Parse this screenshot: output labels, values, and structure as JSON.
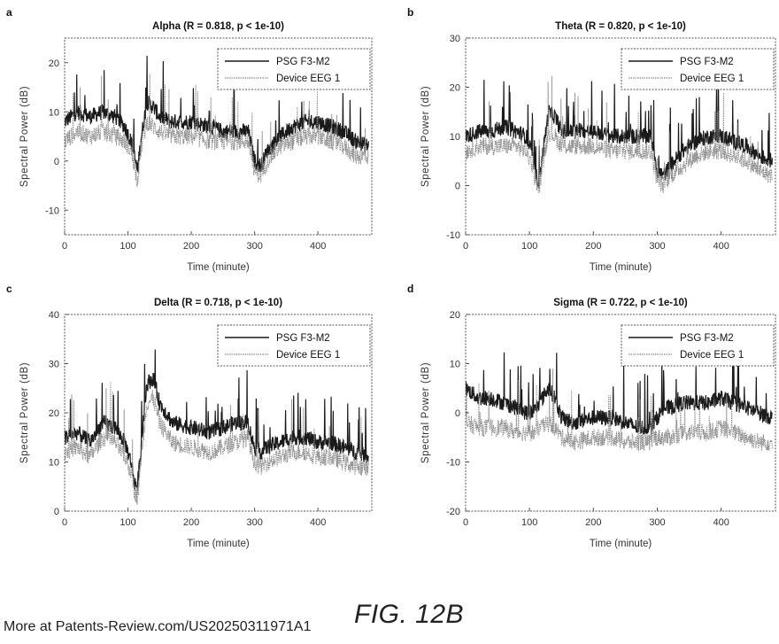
{
  "footer": {
    "source_text": "More at Patents-Review.com/US20250311971A1",
    "figure_label": "FIG. 12B"
  },
  "colors": {
    "psg": "#1a1a1a",
    "device": "#8a8a8a",
    "frame": "#555555"
  },
  "chart_data": [
    {
      "panel": "a",
      "type": "line",
      "title": "Alpha (R = 0.818, p < 1e-10)",
      "xlabel": "Time (minute)",
      "ylabel": "Spectral Power (dB)",
      "xlim": [
        0,
        485
      ],
      "ylim": [
        -15,
        25
      ],
      "xticks": [
        0,
        100,
        200,
        300,
        400
      ],
      "yticks": [
        -10,
        0,
        10,
        20
      ],
      "grid": false,
      "legend_position": "top-right",
      "series": [
        {
          "name": "PSG F3-M2",
          "style": "solid",
          "x": [
            0,
            20,
            40,
            60,
            80,
            95,
            105,
            110,
            115,
            120,
            130,
            140,
            150,
            170,
            200,
            230,
            250,
            270,
            290,
            295,
            300,
            310,
            320,
            340,
            360,
            380,
            400,
            420,
            440,
            460,
            480
          ],
          "y": [
            8,
            10,
            9,
            10,
            9,
            7,
            4,
            1,
            -2,
            4,
            12,
            11,
            9,
            8,
            8,
            7,
            6,
            6,
            6,
            3,
            0,
            -1,
            2,
            5,
            7,
            8,
            8,
            7,
            6,
            4,
            3
          ]
        },
        {
          "name": "Device EEG 1",
          "style": "dotted",
          "x": [
            0,
            20,
            40,
            60,
            80,
            95,
            105,
            110,
            115,
            120,
            130,
            140,
            150,
            170,
            200,
            230,
            250,
            270,
            290,
            295,
            300,
            310,
            320,
            340,
            360,
            380,
            400,
            420,
            440,
            460,
            480
          ],
          "y": [
            4,
            6,
            5,
            6,
            5,
            4,
            2,
            -1,
            -4,
            2,
            8,
            7,
            6,
            5,
            5,
            4,
            4,
            4,
            4,
            1,
            -2,
            -3,
            0,
            3,
            4,
            5,
            5,
            4,
            3,
            1,
            1
          ]
        }
      ]
    },
    {
      "panel": "b",
      "type": "line",
      "title": "Theta (R = 0.820, p < 1e-10)",
      "xlabel": "Time (minute)",
      "ylabel": "Spectral Power (dB)",
      "xlim": [
        0,
        485
      ],
      "ylim": [
        -10,
        30
      ],
      "xticks": [
        0,
        100,
        200,
        300,
        400
      ],
      "yticks": [
        -10,
        0,
        10,
        20,
        30
      ],
      "grid": false,
      "legend_position": "top-right",
      "series": [
        {
          "name": "PSG F3-M2",
          "style": "solid",
          "x": [
            0,
            20,
            40,
            60,
            80,
            95,
            105,
            110,
            115,
            120,
            130,
            140,
            150,
            170,
            200,
            230,
            250,
            270,
            290,
            295,
            300,
            310,
            320,
            340,
            360,
            380,
            400,
            420,
            440,
            460,
            480
          ],
          "y": [
            10,
            11,
            11,
            12,
            11,
            10,
            6,
            2,
            1,
            6,
            15,
            14,
            11,
            11,
            11,
            10,
            10,
            10,
            10,
            7,
            3,
            2,
            4,
            7,
            9,
            10,
            10,
            9,
            8,
            6,
            5
          ]
        },
        {
          "name": "Device EEG 1",
          "style": "dotted",
          "x": [
            0,
            20,
            40,
            60,
            80,
            95,
            105,
            110,
            115,
            120,
            130,
            140,
            150,
            170,
            200,
            230,
            250,
            270,
            290,
            295,
            300,
            310,
            320,
            340,
            360,
            380,
            400,
            420,
            440,
            460,
            480
          ],
          "y": [
            7,
            8,
            8,
            8,
            8,
            7,
            4,
            0,
            -1,
            4,
            11,
            10,
            8,
            8,
            8,
            7,
            7,
            7,
            7,
            4,
            1,
            0,
            2,
            4,
            6,
            7,
            7,
            6,
            5,
            3,
            2
          ]
        }
      ]
    },
    {
      "panel": "c",
      "type": "line",
      "title": "Delta (R = 0.718, p < 1e-10)",
      "xlabel": "Time (minute)",
      "ylabel": "Spectral Power (dB)",
      "xlim": [
        0,
        485
      ],
      "ylim": [
        0,
        40
      ],
      "xticks": [
        0,
        100,
        200,
        300,
        400
      ],
      "yticks": [
        0,
        10,
        20,
        30,
        40
      ],
      "grid": false,
      "legend_position": "top-right",
      "series": [
        {
          "name": "PSG F3-M2",
          "style": "solid",
          "x": [
            0,
            20,
            40,
            60,
            80,
            95,
            105,
            110,
            115,
            120,
            130,
            140,
            150,
            170,
            200,
            230,
            250,
            270,
            290,
            295,
            300,
            310,
            320,
            340,
            360,
            380,
            400,
            420,
            440,
            460,
            480
          ],
          "y": [
            15,
            16,
            14,
            18,
            17,
            14,
            10,
            6,
            5,
            12,
            26,
            27,
            22,
            18,
            17,
            16,
            17,
            18,
            18,
            15,
            13,
            12,
            13,
            14,
            15,
            15,
            14,
            14,
            13,
            12,
            11
          ]
        },
        {
          "name": "Device EEG 1",
          "style": "dotted",
          "x": [
            0,
            20,
            40,
            60,
            80,
            95,
            105,
            110,
            115,
            120,
            130,
            140,
            150,
            170,
            200,
            230,
            250,
            270,
            290,
            295,
            300,
            310,
            320,
            340,
            360,
            380,
            400,
            420,
            440,
            460,
            480
          ],
          "y": [
            12,
            13,
            11,
            15,
            14,
            11,
            8,
            4,
            3,
            10,
            22,
            23,
            18,
            14,
            13,
            12,
            13,
            14,
            15,
            12,
            10,
            9,
            10,
            11,
            12,
            12,
            11,
            11,
            10,
            9,
            9
          ]
        }
      ]
    },
    {
      "panel": "d",
      "type": "line",
      "title": "Sigma (R = 0.722, p < 1e-10)",
      "xlabel": "Time (minute)",
      "ylabel": "Spectral Power (dB)",
      "xlim": [
        0,
        485
      ],
      "ylim": [
        -20,
        20
      ],
      "xticks": [
        0,
        100,
        200,
        300,
        400
      ],
      "yticks": [
        -20,
        -10,
        0,
        10,
        20
      ],
      "grid": false,
      "legend_position": "top-right",
      "series": [
        {
          "name": "PSG F3-M2",
          "style": "solid",
          "x": [
            0,
            20,
            40,
            60,
            80,
            95,
            105,
            110,
            115,
            120,
            130,
            140,
            150,
            170,
            200,
            230,
            250,
            270,
            290,
            295,
            300,
            310,
            320,
            340,
            360,
            380,
            400,
            420,
            440,
            460,
            480
          ],
          "y": [
            5,
            3,
            3,
            2,
            1,
            0,
            0,
            1,
            2,
            3,
            5,
            3,
            -1,
            -2,
            -1,
            -1,
            -2,
            -3,
            -3,
            -2,
            -1,
            1,
            1,
            2,
            2,
            2,
            3,
            2,
            1,
            0,
            -1
          ]
        },
        {
          "name": "Device EEG 1",
          "style": "dotted",
          "x": [
            0,
            20,
            40,
            60,
            80,
            95,
            105,
            110,
            115,
            120,
            130,
            140,
            150,
            170,
            200,
            230,
            250,
            270,
            290,
            295,
            300,
            310,
            320,
            340,
            360,
            380,
            400,
            420,
            440,
            460,
            480
          ],
          "y": [
            -2,
            -3,
            -3,
            -3,
            -4,
            -4,
            -4,
            -4,
            -3,
            -3,
            -2,
            -3,
            -5,
            -6,
            -5,
            -5,
            -6,
            -6,
            -6,
            -5,
            -5,
            -5,
            -5,
            -4,
            -4,
            -4,
            -3,
            -4,
            -5,
            -6,
            -6
          ]
        }
      ]
    }
  ]
}
